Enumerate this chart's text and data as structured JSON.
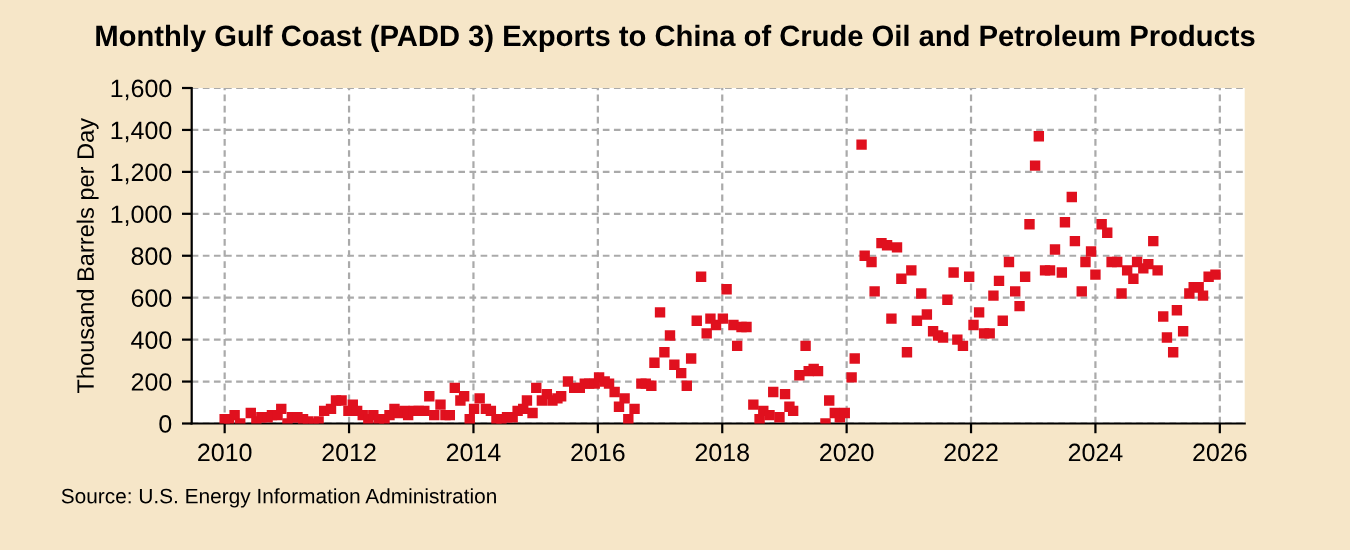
{
  "chart_data": {
    "type": "scatter",
    "title": "Monthly Gulf Coast (PADD 3) Exports to China of Crude Oil and Petroleum Products",
    "ylabel": "Thousand Barrels per Day",
    "annotations": [
      "Source: U.S. Energy Information Administration"
    ],
    "marker": "square",
    "grid": true,
    "xlim": [
      2009.47,
      2026.4
    ],
    "xticks": [
      2010,
      2012,
      2014,
      2016,
      2018,
      2020,
      2022,
      2024,
      2026
    ],
    "ylim": [
      0,
      1600
    ],
    "yticks": [
      0,
      200,
      400,
      600,
      800,
      {
        "value": 1000,
        "label": "1,000"
      },
      {
        "value": 1200,
        "label": "1,200"
      },
      {
        "value": 1400,
        "label": "1,400"
      },
      {
        "value": 1600,
        "label": "1,600"
      }
    ],
    "series": [
      {
        "color": "#e0101e",
        "x": [
          2010.0,
          2010.07,
          2010.16,
          2010.25,
          2010.42,
          2010.51,
          2010.59,
          2010.69,
          2010.76,
          2010.85,
          2010.91,
          2011.01,
          2011.08,
          2011.17,
          2011.26,
          2011.34,
          2011.43,
          2011.51,
          2011.6,
          2011.71,
          2011.79,
          2011.88,
          2011.99,
          2012.06,
          2012.13,
          2012.22,
          2012.31,
          2012.39,
          2012.48,
          2012.57,
          2012.65,
          2012.73,
          2012.8,
          2012.89,
          2012.95,
          2013.04,
          2013.12,
          2013.21,
          2013.29,
          2013.37,
          2013.47,
          2013.55,
          2013.62,
          2013.7,
          2013.79,
          2013.85,
          2013.94,
          2014.01,
          2014.1,
          2014.2,
          2014.28,
          2014.37,
          2014.45,
          2014.54,
          2014.63,
          2014.71,
          2014.8,
          2014.86,
          2014.95,
          2015.01,
          2015.1,
          2015.18,
          2015.27,
          2015.35,
          2015.41,
          2015.52,
          2015.62,
          2015.71,
          2015.79,
          2015.86,
          2015.95,
          2016.02,
          2016.11,
          2016.18,
          2016.27,
          2016.34,
          2016.43,
          2016.49,
          2016.59,
          2016.7,
          2016.77,
          2016.86,
          2016.91,
          2017.0,
          2017.07,
          2017.16,
          2017.23,
          2017.34,
          2017.43,
          2017.5,
          2017.59,
          2017.66,
          2017.75,
          2017.81,
          2017.9,
          2018.01,
          2018.07,
          2018.18,
          2018.24,
          2018.31,
          2018.39,
          2018.5,
          2018.6,
          2018.66,
          2018.76,
          2018.82,
          2018.92,
          2019.01,
          2019.08,
          2019.14,
          2019.24,
          2019.34,
          2019.39,
          2019.47,
          2019.54,
          2019.66,
          2019.72,
          2019.81,
          2019.89,
          2019.97,
          2020.08,
          2020.13,
          2020.24,
          2020.29,
          2020.4,
          2020.45,
          2020.56,
          2020.65,
          2020.72,
          2020.81,
          2020.88,
          2020.97,
          2021.04,
          2021.13,
          2021.2,
          2021.29,
          2021.39,
          2021.47,
          2021.55,
          2021.62,
          2021.72,
          2021.78,
          2021.87,
          2021.97,
          2022.04,
          2022.13,
          2022.21,
          2022.3,
          2022.36,
          2022.45,
          2022.51,
          2022.61,
          2022.71,
          2022.78,
          2022.87,
          2022.94,
          2023.03,
          2023.09,
          2023.19,
          2023.27,
          2023.35,
          2023.46,
          2023.51,
          2023.62,
          2023.67,
          2023.78,
          2023.84,
          2023.93,
          2024.0,
          2024.1,
          2024.19,
          2024.26,
          2024.35,
          2024.42,
          2024.51,
          2024.61,
          2024.67,
          2024.77,
          2024.85,
          2024.93,
          2025.0,
          2025.09,
          2025.15,
          2025.25,
          2025.31,
          2025.41,
          2025.51,
          2025.58,
          2025.66,
          2025.73,
          2025.82,
          2025.93
        ],
        "values": [
          20,
          20,
          40,
          0,
          50,
          10,
          30,
          30,
          40,
          40,
          70,
          0,
          30,
          30,
          20,
          10,
          0,
          10,
          60,
          70,
          110,
          110,
          60,
          90,
          60,
          40,
          20,
          40,
          20,
          20,
          40,
          70,
          50,
          60,
          40,
          60,
          60,
          60,
          130,
          40,
          90,
          40,
          40,
          170,
          110,
          130,
          20,
          70,
          120,
          70,
          60,
          20,
          20,
          30,
          30,
          60,
          70,
          110,
          50,
          170,
          110,
          140,
          110,
          120,
          130,
          200,
          170,
          170,
          190,
          190,
          190,
          220,
          200,
          190,
          150,
          80,
          120,
          20,
          70,
          190,
          190,
          180,
          290,
          530,
          340,
          420,
          280,
          240,
          180,
          310,
          490,
          700,
          430,
          500,
          470,
          500,
          640,
          470,
          370,
          460,
          460,
          90,
          20,
          60,
          40,
          150,
          30,
          140,
          80,
          60,
          230,
          370,
          250,
          260,
          250,
          0,
          110,
          50,
          30,
          50,
          220,
          310,
          1330,
          800,
          770,
          630,
          860,
          850,
          500,
          840,
          690,
          340,
          730,
          490,
          620,
          520,
          440,
          420,
          410,
          590,
          720,
          400,
          370,
          700,
          470,
          530,
          430,
          430,
          610,
          680,
          490,
          770,
          630,
          560,
          700,
          950,
          1230,
          1370,
          730,
          730,
          830,
          720,
          960,
          1080,
          870,
          630,
          770,
          820,
          710,
          950,
          910,
          770,
          770,
          620,
          730,
          690,
          770,
          740,
          760,
          870,
          730,
          510,
          410,
          340,
          540,
          440,
          620,
          650,
          650,
          610,
          700,
          710
        ]
      }
    ]
  }
}
